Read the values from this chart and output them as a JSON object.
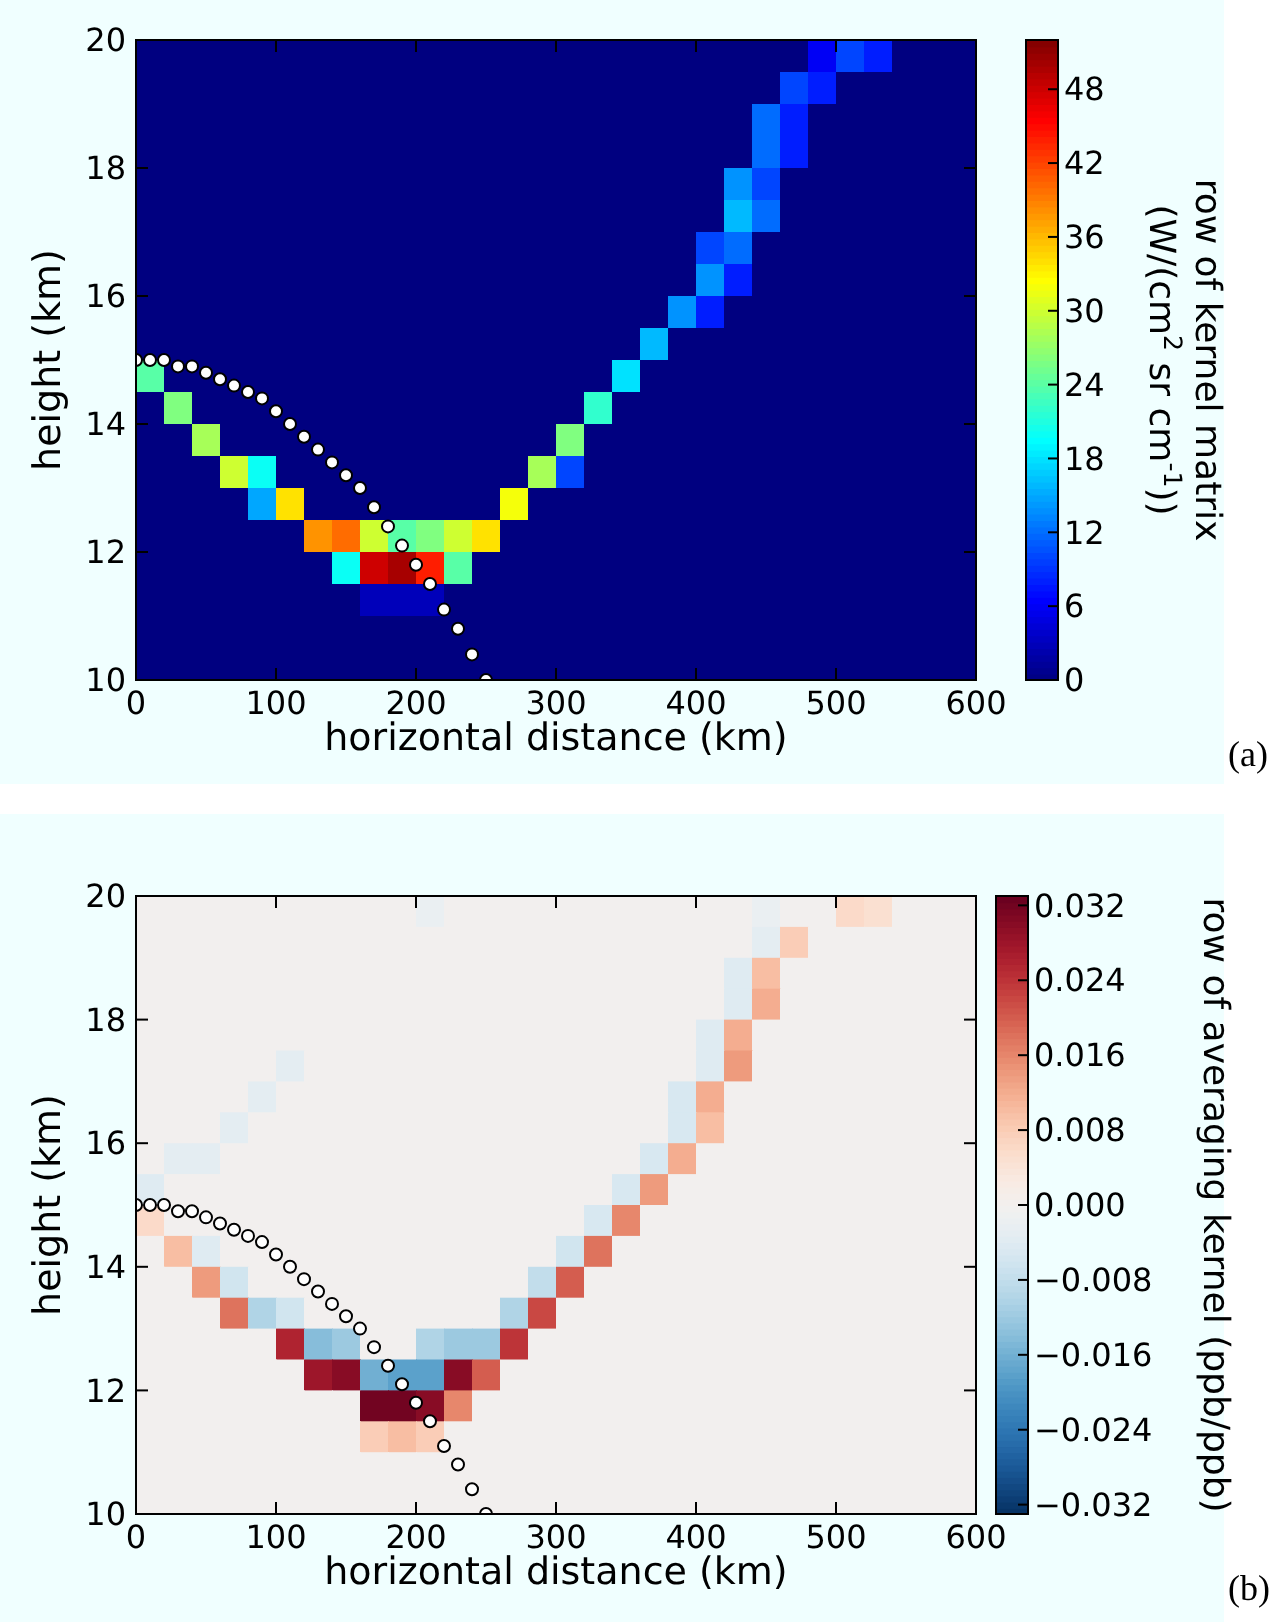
{
  "chart_data": [
    {
      "type": "heatmap",
      "xlabel": "horizontal distance (km)",
      "ylabel": "height (km)",
      "clabel": "row of kernel matrix\n(W/(cm$^{2}$ sr cm$^{-1}$))",
      "annotations": [
        "(a)"
      ],
      "xlim": [
        0,
        600
      ],
      "ylim": [
        10,
        20
      ],
      "xticks": [
        0,
        100,
        200,
        300,
        400,
        500,
        600
      ],
      "yticks": [
        10,
        12,
        14,
        16,
        18,
        20
      ],
      "clim": [
        0,
        52
      ],
      "cticks": [
        0,
        6,
        12,
        18,
        24,
        30,
        36,
        42,
        48
      ],
      "cells": [
        [
          0,
          0,
          0,
          0,
          0,
          0,
          0,
          0,
          0,
          0,
          0,
          0,
          0,
          0,
          0,
          0,
          0,
          0,
          0,
          0,
          0,
          0,
          0,
          0,
          6,
          10,
          8,
          0,
          0,
          0
        ],
        [
          0,
          0,
          0,
          0,
          0,
          0,
          0,
          0,
          0,
          0,
          0,
          0,
          0,
          0,
          0,
          0,
          0,
          0,
          0,
          0,
          0,
          0,
          0,
          10,
          8,
          0,
          0,
          0,
          0,
          0
        ],
        [
          0,
          0,
          0,
          0,
          0,
          0,
          0,
          0,
          0,
          0,
          0,
          0,
          0,
          0,
          0,
          0,
          0,
          0,
          0,
          0,
          0,
          0,
          12,
          8,
          0,
          0,
          0,
          0,
          0,
          0
        ],
        [
          0,
          0,
          0,
          0,
          0,
          0,
          0,
          0,
          0,
          0,
          0,
          0,
          0,
          0,
          0,
          0,
          0,
          0,
          0,
          0,
          0,
          0,
          12,
          8,
          0,
          0,
          0,
          0,
          0,
          0
        ],
        [
          0,
          0,
          0,
          0,
          0,
          0,
          0,
          0,
          0,
          0,
          0,
          0,
          0,
          0,
          0,
          0,
          0,
          0,
          0,
          0,
          0,
          14,
          10,
          0,
          0,
          0,
          0,
          0,
          0,
          0
        ],
        [
          0,
          0,
          0,
          0,
          0,
          0,
          0,
          0,
          0,
          0,
          0,
          0,
          0,
          0,
          0,
          0,
          0,
          0,
          0,
          0,
          0,
          16,
          12,
          0,
          0,
          0,
          0,
          0,
          0,
          0
        ],
        [
          0,
          0,
          0,
          0,
          0,
          0,
          0,
          0,
          0,
          0,
          0,
          0,
          0,
          0,
          0,
          0,
          0,
          0,
          0,
          0,
          10,
          12,
          0,
          0,
          0,
          0,
          0,
          0,
          0,
          0
        ],
        [
          0,
          0,
          0,
          0,
          0,
          0,
          0,
          0,
          0,
          0,
          0,
          0,
          0,
          0,
          0,
          0,
          0,
          0,
          0,
          0,
          14,
          8,
          0,
          0,
          0,
          0,
          0,
          0,
          0,
          0
        ],
        [
          0,
          0,
          0,
          0,
          0,
          0,
          0,
          0,
          0,
          0,
          0,
          0,
          0,
          0,
          0,
          0,
          0,
          0,
          0,
          14,
          8,
          0,
          0,
          0,
          0,
          0,
          0,
          0,
          0,
          0
        ],
        [
          0,
          0,
          0,
          0,
          0,
          0,
          0,
          0,
          0,
          0,
          0,
          0,
          0,
          0,
          0,
          0,
          0,
          0,
          16,
          0,
          0,
          0,
          0,
          0,
          0,
          0,
          0,
          0,
          0,
          0
        ],
        [
          24,
          0,
          0,
          0,
          0,
          0,
          0,
          0,
          0,
          0,
          0,
          0,
          0,
          0,
          0,
          0,
          0,
          18,
          0,
          0,
          0,
          0,
          0,
          0,
          0,
          0,
          0,
          0,
          0,
          0
        ],
        [
          0,
          26,
          0,
          0,
          0,
          0,
          0,
          0,
          0,
          0,
          0,
          0,
          0,
          0,
          0,
          0,
          22,
          0,
          0,
          0,
          0,
          0,
          0,
          0,
          0,
          0,
          0,
          0,
          0,
          0
        ],
        [
          0,
          0,
          28,
          0,
          0,
          0,
          0,
          0,
          0,
          0,
          0,
          0,
          0,
          0,
          0,
          26,
          0,
          0,
          0,
          0,
          0,
          0,
          0,
          0,
          0,
          0,
          0,
          0,
          0,
          0
        ],
        [
          0,
          0,
          0,
          30,
          20,
          0,
          0,
          0,
          0,
          0,
          0,
          0,
          0,
          0,
          28,
          10,
          0,
          0,
          0,
          0,
          0,
          0,
          0,
          0,
          0,
          0,
          0,
          0,
          0,
          0
        ],
        [
          0,
          0,
          0,
          0,
          15,
          34,
          0,
          0,
          0,
          0,
          0,
          0,
          0,
          32,
          0,
          0,
          0,
          0,
          0,
          0,
          0,
          0,
          0,
          0,
          0,
          0,
          0,
          0,
          0,
          0
        ],
        [
          0,
          0,
          0,
          0,
          0,
          0,
          38,
          40,
          30,
          24,
          26,
          30,
          34,
          0,
          0,
          0,
          0,
          0,
          0,
          0,
          0,
          0,
          0,
          0,
          0,
          0,
          0,
          0,
          0,
          0
        ],
        [
          0,
          0,
          0,
          0,
          0,
          0,
          0,
          20,
          48,
          50,
          44,
          24,
          0,
          0,
          0,
          0,
          0,
          0,
          0,
          0,
          0,
          0,
          0,
          0,
          0,
          0,
          0,
          0,
          0,
          0
        ],
        [
          0,
          0,
          0,
          0,
          0,
          0,
          0,
          0,
          3,
          3,
          3,
          0,
          0,
          0,
          0,
          0,
          0,
          0,
          0,
          0,
          0,
          0,
          0,
          0,
          0,
          0,
          0,
          0,
          0,
          0
        ],
        [
          0,
          0,
          0,
          0,
          0,
          0,
          0,
          0,
          0,
          0,
          0,
          0,
          0,
          0,
          0,
          0,
          0,
          0,
          0,
          0,
          0,
          0,
          0,
          0,
          0,
          0,
          0,
          0,
          0,
          0
        ],
        [
          0,
          0,
          0,
          0,
          0,
          0,
          0,
          0,
          0,
          0,
          0,
          0,
          0,
          0,
          0,
          0,
          0,
          0,
          0,
          0,
          0,
          0,
          0,
          0,
          0,
          0,
          0,
          0,
          0,
          0
        ]
      ],
      "series": [
        {
          "type": "scatter",
          "color": "#ffffff",
          "marker": "circle",
          "x": [
            0,
            10,
            20,
            30,
            40,
            50,
            60,
            70,
            80,
            90,
            100,
            110,
            120,
            130,
            140,
            150,
            160,
            170,
            180,
            190,
            200,
            210,
            220,
            230,
            240,
            250
          ],
          "values": [
            15,
            15,
            15,
            14.9,
            14.9,
            14.8,
            14.7,
            14.6,
            14.5,
            14.4,
            14.2,
            14,
            13.8,
            13.6,
            13.4,
            13.2,
            13,
            12.7,
            12.4,
            12.1,
            11.8,
            11.5,
            11.1,
            10.8,
            10.4,
            10
          ]
        }
      ]
    },
    {
      "type": "heatmap",
      "xlabel": "horizontal distance (km)",
      "ylabel": "height (km)",
      "clabel": "row of averaging kernel (ppb/ppb)",
      "annotations": [
        "(b)"
      ],
      "xlim": [
        0,
        600
      ],
      "ylim": [
        10,
        20
      ],
      "xticks": [
        0,
        100,
        200,
        300,
        400,
        500,
        600
      ],
      "yticks": [
        10,
        12,
        14,
        16,
        18,
        20
      ],
      "clim": [
        -0.033,
        0.033
      ],
      "cticks": [
        {
          "value": -0.032,
          "label": "−0.032"
        },
        {
          "value": -0.024,
          "label": "−0.024"
        },
        {
          "value": -0.016,
          "label": "−0.016"
        },
        {
          "value": -0.008,
          "label": "−0.008"
        },
        {
          "value": 0,
          "label": "0.000"
        },
        {
          "value": 0.008,
          "label": "0.008"
        },
        {
          "value": 0.016,
          "label": "0.016"
        },
        {
          "value": 0.024,
          "label": "0.024"
        },
        {
          "value": 0.032,
          "label": "0.032"
        }
      ],
      "cells": [
        [
          0,
          0,
          0,
          0,
          0,
          0,
          0,
          0,
          0,
          0,
          -0.002,
          0,
          0,
          0,
          0,
          0,
          0,
          0,
          0,
          0,
          0,
          0,
          -0.002,
          0,
          0,
          0.006,
          0.005,
          0,
          0,
          0
        ],
        [
          0,
          0,
          0,
          0,
          0,
          0,
          0,
          0,
          0,
          0,
          0,
          0,
          0,
          0,
          0,
          0,
          0,
          0,
          0,
          0,
          0,
          0,
          -0.003,
          0.008,
          0,
          0,
          0,
          0,
          0,
          0
        ],
        [
          0,
          0,
          0,
          0,
          0,
          0,
          0,
          0,
          0,
          0,
          0,
          0,
          0,
          0,
          0,
          0,
          0,
          0,
          0,
          0,
          0,
          -0.004,
          0.01,
          0,
          0,
          0,
          0,
          0,
          0,
          0
        ],
        [
          0,
          0,
          0,
          0,
          0,
          0,
          0,
          0,
          0,
          0,
          0,
          0,
          0,
          0,
          0,
          0,
          0,
          0,
          0,
          0,
          0,
          -0.004,
          0.012,
          0,
          0,
          0,
          0,
          0,
          0,
          0
        ],
        [
          0,
          0,
          0,
          0,
          0,
          0,
          0,
          0,
          0,
          0,
          0,
          0,
          0,
          0,
          0,
          0,
          0,
          0,
          0,
          0,
          -0.004,
          0.012,
          0,
          0,
          0,
          0,
          0,
          0,
          0,
          0
        ],
        [
          0,
          0,
          0,
          0,
          0,
          -0.003,
          0,
          0,
          0,
          0,
          0,
          0,
          0,
          0,
          0,
          0,
          0,
          0,
          0,
          0,
          -0.004,
          0.014,
          0,
          0,
          0,
          0,
          0,
          0,
          0,
          0
        ],
        [
          0,
          0,
          0,
          0,
          -0.003,
          0,
          0,
          0,
          0,
          0,
          0,
          0,
          0,
          0,
          0,
          0,
          0,
          0,
          0,
          -0.005,
          0.012,
          0,
          0,
          0,
          0,
          0,
          0,
          0,
          0,
          0
        ],
        [
          0,
          0,
          0,
          -0.003,
          0,
          0,
          0,
          0,
          0,
          0,
          0,
          0,
          0,
          0,
          0,
          0,
          0,
          0,
          0,
          -0.005,
          0.01,
          0,
          0,
          0,
          0,
          0,
          0,
          0,
          0,
          0
        ],
        [
          0,
          -0.003,
          -0.003,
          0,
          0,
          0,
          0,
          0,
          0,
          0,
          0,
          0,
          0,
          0,
          0,
          0,
          0,
          0,
          -0.005,
          0.012,
          0,
          0,
          0,
          0,
          0,
          0,
          0,
          0,
          0,
          0
        ],
        [
          -0.004,
          0,
          0,
          0,
          0,
          0,
          0,
          0,
          0,
          0,
          0,
          0,
          0,
          0,
          0,
          0,
          0,
          -0.005,
          0.014,
          0,
          0,
          0,
          0,
          0,
          0,
          0,
          0,
          0,
          0,
          0
        ],
        [
          0.006,
          0,
          0,
          0,
          0,
          0,
          0,
          0,
          0,
          0,
          0,
          0,
          0,
          0,
          0,
          0,
          -0.005,
          0.016,
          0,
          0,
          0,
          0,
          0,
          0,
          0,
          0,
          0,
          0,
          0,
          0
        ],
        [
          0,
          0.01,
          -0.004,
          0,
          0,
          0,
          0,
          0,
          0,
          0,
          0,
          0,
          0,
          0,
          0,
          -0.006,
          0.018,
          0,
          0,
          0,
          0,
          0,
          0,
          0,
          0,
          0,
          0,
          0,
          0,
          0
        ],
        [
          0,
          0,
          0.014,
          -0.006,
          0,
          0,
          0,
          0,
          0,
          0,
          0,
          0,
          0,
          0,
          -0.008,
          0.02,
          0,
          0,
          0,
          0,
          0,
          0,
          0,
          0,
          0,
          0,
          0,
          0,
          0,
          0
        ],
        [
          0,
          0,
          0,
          0.018,
          -0.01,
          -0.006,
          0,
          0,
          0,
          0,
          0,
          0,
          0,
          -0.01,
          0.022,
          0,
          0,
          0,
          0,
          0,
          0,
          0,
          0,
          0,
          0,
          0,
          0,
          0,
          0,
          0
        ],
        [
          0,
          0,
          0,
          0,
          0,
          0.026,
          -0.014,
          -0.012,
          0,
          0,
          -0.01,
          -0.012,
          -0.012,
          0.024,
          0,
          0,
          0,
          0,
          0,
          0,
          0,
          0,
          0,
          0,
          0,
          0,
          0,
          0,
          0,
          0
        ],
        [
          0,
          0,
          0,
          0,
          0,
          0,
          0.028,
          0.03,
          -0.016,
          -0.018,
          -0.018,
          0.03,
          0.02,
          0,
          0,
          0,
          0,
          0,
          0,
          0,
          0,
          0,
          0,
          0,
          0,
          0,
          0,
          0,
          0,
          0
        ],
        [
          0,
          0,
          0,
          0,
          0,
          0,
          0,
          0,
          0.032,
          0.032,
          0.03,
          0.016,
          0,
          0,
          0,
          0,
          0,
          0,
          0,
          0,
          0,
          0,
          0,
          0,
          0,
          0,
          0,
          0,
          0,
          0
        ],
        [
          0,
          0,
          0,
          0,
          0,
          0,
          0,
          0,
          0.008,
          0.01,
          0.008,
          0,
          0,
          0,
          0,
          0,
          0,
          0,
          0,
          0,
          0,
          0,
          0,
          0,
          0,
          0,
          0,
          0,
          0,
          0
        ],
        [
          0,
          0,
          0,
          0,
          0,
          0,
          0,
          0,
          0,
          0,
          0,
          0,
          0,
          0,
          0,
          0,
          0,
          0,
          0,
          0,
          0,
          0,
          0,
          0,
          0,
          0,
          0,
          0,
          0,
          0
        ],
        [
          0,
          0,
          0,
          0,
          0,
          0,
          0,
          0,
          0,
          0,
          0,
          0,
          0,
          0,
          0,
          0,
          0,
          0,
          0,
          0,
          0,
          0,
          0,
          0,
          0,
          0,
          0,
          0,
          0,
          0
        ]
      ],
      "series": [
        {
          "type": "scatter",
          "color": "#ffffff",
          "marker": "circle",
          "x": [
            0,
            10,
            20,
            30,
            40,
            50,
            60,
            70,
            80,
            90,
            100,
            110,
            120,
            130,
            140,
            150,
            160,
            170,
            180,
            190,
            200,
            210,
            220,
            230,
            240,
            250
          ],
          "values": [
            15,
            15,
            15,
            14.9,
            14.9,
            14.8,
            14.7,
            14.6,
            14.5,
            14.4,
            14.2,
            14,
            13.8,
            13.6,
            13.4,
            13.2,
            13,
            12.7,
            12.4,
            12.1,
            11.8,
            11.5,
            11.1,
            10.8,
            10.4,
            10
          ]
        }
      ]
    }
  ]
}
